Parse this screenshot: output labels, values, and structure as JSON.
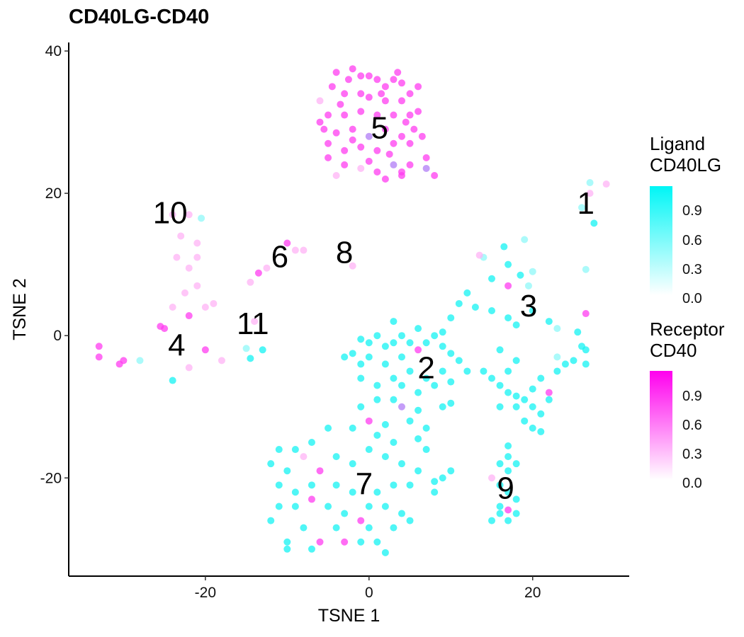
{
  "chart_data": {
    "type": "scatter",
    "title": "CD40LG-CD40",
    "xlabel": "TSNE 1",
    "ylabel": "TSNE 2",
    "xlim": [
      -36.7,
      31.8
    ],
    "ylim": [
      -33.8,
      41.2
    ],
    "xticks": [
      -20,
      0,
      20
    ],
    "yticks": [
      -20,
      0,
      20,
      40
    ],
    "palette": {
      "c": "#14f3f3",
      "lc": "#8ff8f8",
      "m": "#ff3cf0",
      "lm": "#ffb3f5",
      "p": "#b07cf5"
    },
    "cluster_labels": [
      {
        "text": "1",
        "x": 26.5,
        "y": 18.6
      },
      {
        "text": "2",
        "x": 7,
        "y": -4.5
      },
      {
        "text": "3",
        "x": 19.5,
        "y": 4.2
      },
      {
        "text": "4",
        "x": -23.5,
        "y": -1.3
      },
      {
        "text": "5",
        "x": 1.3,
        "y": 29.2
      },
      {
        "text": "6",
        "x": -10.9,
        "y": 11.1
      },
      {
        "text": "7",
        "x": -0.6,
        "y": -20.8
      },
      {
        "text": "8",
        "x": -3,
        "y": 11.7
      },
      {
        "text": "9",
        "x": 16.7,
        "y": -21.4
      },
      {
        "text": "10",
        "x": -24.3,
        "y": 17.3
      },
      {
        "text": "11",
        "x": -14.2,
        "y": 1.7
      }
    ],
    "points": [
      [
        -4,
        37,
        "m"
      ],
      [
        -2,
        37.5,
        "m"
      ],
      [
        0,
        36.5,
        "m"
      ],
      [
        1,
        36,
        "m"
      ],
      [
        2,
        35,
        "m"
      ],
      [
        3,
        36,
        "m"
      ],
      [
        4,
        35.5,
        "m"
      ],
      [
        -4.5,
        35,
        "m"
      ],
      [
        -3,
        34,
        "m"
      ],
      [
        -1,
        34,
        "m"
      ],
      [
        0,
        33.5,
        "m"
      ],
      [
        2,
        33,
        "m"
      ],
      [
        4,
        33,
        "m"
      ],
      [
        5,
        34,
        "m"
      ],
      [
        -6,
        33,
        "lm"
      ],
      [
        -5,
        31,
        "m"
      ],
      [
        -3,
        31,
        "m"
      ],
      [
        -1,
        31.5,
        "m"
      ],
      [
        1,
        31,
        "m"
      ],
      [
        3,
        31,
        "m"
      ],
      [
        5,
        31,
        "m"
      ],
      [
        6,
        31.5,
        "m"
      ],
      [
        -5.5,
        29,
        "m"
      ],
      [
        -4,
        28.5,
        "m"
      ],
      [
        -2,
        29,
        "m"
      ],
      [
        0,
        28,
        "p"
      ],
      [
        2,
        29,
        "m"
      ],
      [
        4,
        28,
        "m"
      ],
      [
        5.5,
        29,
        "m"
      ],
      [
        -5,
        27,
        "m"
      ],
      [
        -3,
        26,
        "m"
      ],
      [
        -1,
        26.5,
        "m"
      ],
      [
        1,
        26,
        "m"
      ],
      [
        3,
        27,
        "m"
      ],
      [
        5,
        27,
        "m"
      ],
      [
        -3,
        24,
        "m"
      ],
      [
        -1,
        23.5,
        "lm"
      ],
      [
        1,
        23,
        "m"
      ],
      [
        3,
        24,
        "p"
      ],
      [
        5,
        24,
        "m"
      ],
      [
        7,
        25,
        "m"
      ],
      [
        8,
        22.5,
        "m"
      ],
      [
        -4,
        22.5,
        "lm"
      ],
      [
        2,
        22,
        "m"
      ],
      [
        4,
        22.5,
        "m"
      ],
      [
        -2.5,
        36,
        "m"
      ],
      [
        6,
        35,
        "m"
      ],
      [
        -6,
        30,
        "m"
      ],
      [
        6.5,
        28,
        "m"
      ],
      [
        0,
        24.5,
        "m"
      ],
      [
        -5,
        25,
        "m"
      ],
      [
        -1,
        36.5,
        "m"
      ],
      [
        3.5,
        37,
        "m"
      ],
      [
        -3.5,
        32.5,
        "m"
      ],
      [
        1.5,
        34,
        "m"
      ],
      [
        4.5,
        30,
        "m"
      ],
      [
        -2,
        27.5,
        "m"
      ],
      [
        2.5,
        25.5,
        "m"
      ],
      [
        4,
        23,
        "m"
      ],
      [
        7,
        23.5,
        "p"
      ],
      [
        27,
        21.5,
        "lc"
      ],
      [
        29,
        21.3,
        "lm"
      ],
      [
        27,
        20,
        "lm"
      ],
      [
        27.5,
        15.8,
        "c"
      ],
      [
        26,
        18,
        "lc"
      ],
      [
        26.5,
        9.3,
        "lc"
      ],
      [
        26.5,
        3.1,
        "m"
      ],
      [
        -24,
        17,
        "lm"
      ],
      [
        -22,
        17,
        "lm"
      ],
      [
        -20.5,
        16.5,
        "lc"
      ],
      [
        -23,
        14,
        "lm"
      ],
      [
        -21,
        13,
        "lm"
      ],
      [
        -23.5,
        11,
        "lm"
      ],
      [
        -21,
        11,
        "lm"
      ],
      [
        -22,
        9.5,
        "lm"
      ],
      [
        -21,
        7,
        "lm"
      ],
      [
        -22.5,
        6,
        "lm"
      ],
      [
        -19,
        4.5,
        "lm"
      ],
      [
        -20,
        4,
        "lm"
      ],
      [
        -24,
        4,
        "lm"
      ],
      [
        -22,
        2.8,
        "m"
      ],
      [
        -25.5,
        1.3,
        "m"
      ],
      [
        -25,
        1,
        "m"
      ],
      [
        -20,
        -2,
        "m"
      ],
      [
        -22,
        -4.5,
        "lm"
      ],
      [
        -18,
        -3.5,
        "lm"
      ],
      [
        -24,
        -6.3,
        "c"
      ],
      [
        -30,
        -3.5,
        "m"
      ],
      [
        -30.5,
        -4,
        "m"
      ],
      [
        -33,
        -3,
        "m"
      ],
      [
        -33,
        -1.5,
        "m"
      ],
      [
        -28,
        -3.5,
        "lc"
      ],
      [
        -10,
        13,
        "m"
      ],
      [
        -9,
        12,
        "lm"
      ],
      [
        -8,
        12,
        "lm"
      ],
      [
        -12.5,
        9.5,
        "lm"
      ],
      [
        -14.5,
        7.5,
        "lm"
      ],
      [
        -13.5,
        8.8,
        "m"
      ],
      [
        -2,
        9.8,
        "lm"
      ],
      [
        -15,
        -1.8,
        "lc"
      ],
      [
        -13,
        -2,
        "c"
      ],
      [
        -14.5,
        -3.2,
        "c"
      ],
      [
        -14,
        2,
        "lm"
      ],
      [
        19,
        13.5,
        "lc"
      ],
      [
        16.5,
        12.5,
        "c"
      ],
      [
        14,
        11,
        "lc"
      ],
      [
        17,
        10,
        "c"
      ],
      [
        18.5,
        8.5,
        "c"
      ],
      [
        20,
        9,
        "lc"
      ],
      [
        12,
        6,
        "c"
      ],
      [
        15,
        8,
        "c"
      ],
      [
        17,
        7,
        "m"
      ],
      [
        19.5,
        7,
        "lc"
      ],
      [
        11,
        4.5,
        "c"
      ],
      [
        13,
        4,
        "c"
      ],
      [
        15,
        3.5,
        "c"
      ],
      [
        17,
        2.5,
        "c"
      ],
      [
        18,
        1.5,
        "c"
      ],
      [
        20,
        3.5,
        "c"
      ],
      [
        22,
        2,
        "c"
      ],
      [
        23,
        1,
        "lc"
      ],
      [
        25.5,
        0.5,
        "c"
      ],
      [
        26,
        -1.5,
        "c"
      ],
      [
        26.5,
        -2,
        "c"
      ],
      [
        25,
        -3.5,
        "c"
      ],
      [
        26.5,
        -4,
        "c"
      ],
      [
        24,
        -4,
        "c"
      ],
      [
        23,
        -3,
        "lc"
      ],
      [
        16,
        -2,
        "c"
      ],
      [
        18,
        -3.5,
        "c"
      ],
      [
        13.5,
        11.3,
        "lm"
      ],
      [
        -1,
        -0.5,
        "c"
      ],
      [
        0,
        -1,
        "c"
      ],
      [
        1,
        0,
        "c"
      ],
      [
        2,
        -1.5,
        "c"
      ],
      [
        3,
        -1,
        "c"
      ],
      [
        4,
        0,
        "c"
      ],
      [
        5,
        -1,
        "c"
      ],
      [
        6,
        -2,
        "m"
      ],
      [
        7,
        -1,
        "c"
      ],
      [
        8,
        0,
        "c"
      ],
      [
        9,
        -1.5,
        "c"
      ],
      [
        10,
        -2.5,
        "c"
      ],
      [
        11,
        -3.5,
        "c"
      ],
      [
        -2,
        -2.5,
        "c"
      ],
      [
        -1,
        -4,
        "c"
      ],
      [
        0,
        -3,
        "c"
      ],
      [
        2,
        -4,
        "c"
      ],
      [
        4,
        -3,
        "c"
      ],
      [
        5,
        -5,
        "c"
      ],
      [
        7,
        -6,
        "c"
      ],
      [
        9,
        -5,
        "c"
      ],
      [
        10,
        -6.5,
        "c"
      ],
      [
        12,
        -5,
        "c"
      ],
      [
        -1,
        -6,
        "c"
      ],
      [
        1,
        -7,
        "c"
      ],
      [
        3,
        -6,
        "c"
      ],
      [
        4,
        -7,
        "c"
      ],
      [
        6,
        -8,
        "c"
      ],
      [
        8,
        -7,
        "c"
      ],
      [
        -1,
        -10,
        "c"
      ],
      [
        1,
        -9,
        "c"
      ],
      [
        3,
        -9,
        "c"
      ],
      [
        4,
        -10,
        "p"
      ],
      [
        6,
        -10.5,
        "c"
      ],
      [
        9,
        -10,
        "c"
      ],
      [
        10,
        -9.5,
        "c"
      ],
      [
        0,
        -12,
        "m"
      ],
      [
        2,
        -12.5,
        "c"
      ],
      [
        5,
        -12,
        "c"
      ],
      [
        7,
        -13,
        "c"
      ],
      [
        3,
        2,
        "c"
      ],
      [
        6,
        1,
        "c"
      ],
      [
        9,
        0.5,
        "c"
      ],
      [
        10,
        2.5,
        "c"
      ],
      [
        -3,
        -3,
        "c"
      ],
      [
        14,
        -5,
        "c"
      ],
      [
        15,
        -6,
        "c"
      ],
      [
        16,
        -7,
        "c"
      ],
      [
        17,
        -8,
        "c"
      ],
      [
        18,
        -8.5,
        "c"
      ],
      [
        19,
        -9,
        "c"
      ],
      [
        20,
        -10,
        "c"
      ],
      [
        21,
        -11,
        "c"
      ],
      [
        19,
        -12,
        "c"
      ],
      [
        20,
        -13,
        "c"
      ],
      [
        22,
        -9,
        "c"
      ],
      [
        18,
        -10,
        "c"
      ],
      [
        16,
        -10,
        "c"
      ],
      [
        17,
        -5,
        "c"
      ],
      [
        21,
        -6,
        "c"
      ],
      [
        22,
        -8,
        "m"
      ],
      [
        20,
        -7.5,
        "c"
      ],
      [
        23,
        -5,
        "c"
      ],
      [
        21,
        -13.5,
        "c"
      ],
      [
        -5,
        -13,
        "c"
      ],
      [
        -2,
        -13,
        "c"
      ],
      [
        1,
        -14,
        "c"
      ],
      [
        3,
        -15,
        "c"
      ],
      [
        6,
        -14.5,
        "c"
      ],
      [
        7,
        -16,
        "c"
      ],
      [
        -7,
        -15,
        "c"
      ],
      [
        -9,
        -16,
        "c"
      ],
      [
        -11,
        -16,
        "c"
      ],
      [
        -12,
        -18,
        "c"
      ],
      [
        -10,
        -19,
        "c"
      ],
      [
        -8,
        -17,
        "lm"
      ],
      [
        -6,
        -19,
        "m"
      ],
      [
        -4,
        -17,
        "c"
      ],
      [
        -2,
        -18,
        "c"
      ],
      [
        0,
        -16,
        "c"
      ],
      [
        2,
        -17,
        "c"
      ],
      [
        4,
        -18,
        "c"
      ],
      [
        6,
        -19,
        "c"
      ],
      [
        8,
        -20.5,
        "c"
      ],
      [
        9,
        -20,
        "c"
      ],
      [
        10,
        -19,
        "c"
      ],
      [
        5,
        -21,
        "c"
      ],
      [
        3,
        -21,
        "c"
      ],
      [
        1,
        -22,
        "c"
      ],
      [
        -2,
        -22,
        "c"
      ],
      [
        -4,
        -21,
        "c"
      ],
      [
        -7,
        -21,
        "c"
      ],
      [
        -9,
        -22,
        "c"
      ],
      [
        -11,
        -21,
        "c"
      ],
      [
        -11,
        -24,
        "c"
      ],
      [
        -9,
        -24,
        "c"
      ],
      [
        -7,
        -23,
        "m"
      ],
      [
        -5,
        -24,
        "c"
      ],
      [
        -3,
        -25,
        "c"
      ],
      [
        0,
        -24,
        "c"
      ],
      [
        2,
        -24,
        "c"
      ],
      [
        4,
        -25,
        "c"
      ],
      [
        5,
        -26,
        "c"
      ],
      [
        -1,
        -26,
        "m"
      ],
      [
        0,
        -27,
        "c"
      ],
      [
        -4,
        -27,
        "c"
      ],
      [
        -8,
        -27,
        "c"
      ],
      [
        -10,
        -29,
        "c"
      ],
      [
        -6,
        -29,
        "m"
      ],
      [
        -3,
        -29,
        "m"
      ],
      [
        1,
        -29,
        "c"
      ],
      [
        2,
        -30.5,
        "c"
      ],
      [
        -7,
        -30,
        "c"
      ],
      [
        -10,
        -30,
        "c"
      ],
      [
        -12,
        -26,
        "c"
      ],
      [
        -1,
        -29,
        "c"
      ],
      [
        3,
        -27,
        "c"
      ],
      [
        8,
        -22,
        "c"
      ],
      [
        16,
        -18,
        "c"
      ],
      [
        17,
        -17,
        "c"
      ],
      [
        17,
        -19,
        "c"
      ],
      [
        18,
        -18,
        "c"
      ],
      [
        15,
        -20,
        "lm"
      ],
      [
        16,
        -21,
        "c"
      ],
      [
        17,
        -22,
        "c"
      ],
      [
        18,
        -23,
        "c"
      ],
      [
        16,
        -24,
        "c"
      ],
      [
        17,
        -24.5,
        "m"
      ],
      [
        16,
        -25,
        "c"
      ],
      [
        17,
        -26,
        "c"
      ],
      [
        15,
        -26,
        "c"
      ],
      [
        18,
        -25,
        "c"
      ],
      [
        17,
        -15.5,
        "c"
      ]
    ],
    "legends": [
      {
        "title_line1": "Ligand",
        "title_line2": "CD40LG",
        "color": "#00f6f6",
        "ticks": [
          "0.9",
          "0.6",
          "0.3",
          "0.0"
        ]
      },
      {
        "title_line1": "Receptor",
        "title_line2": "CD40",
        "color": "#ff00ee",
        "ticks": [
          "0.9",
          "0.6",
          "0.3",
          "0.0"
        ]
      }
    ]
  }
}
